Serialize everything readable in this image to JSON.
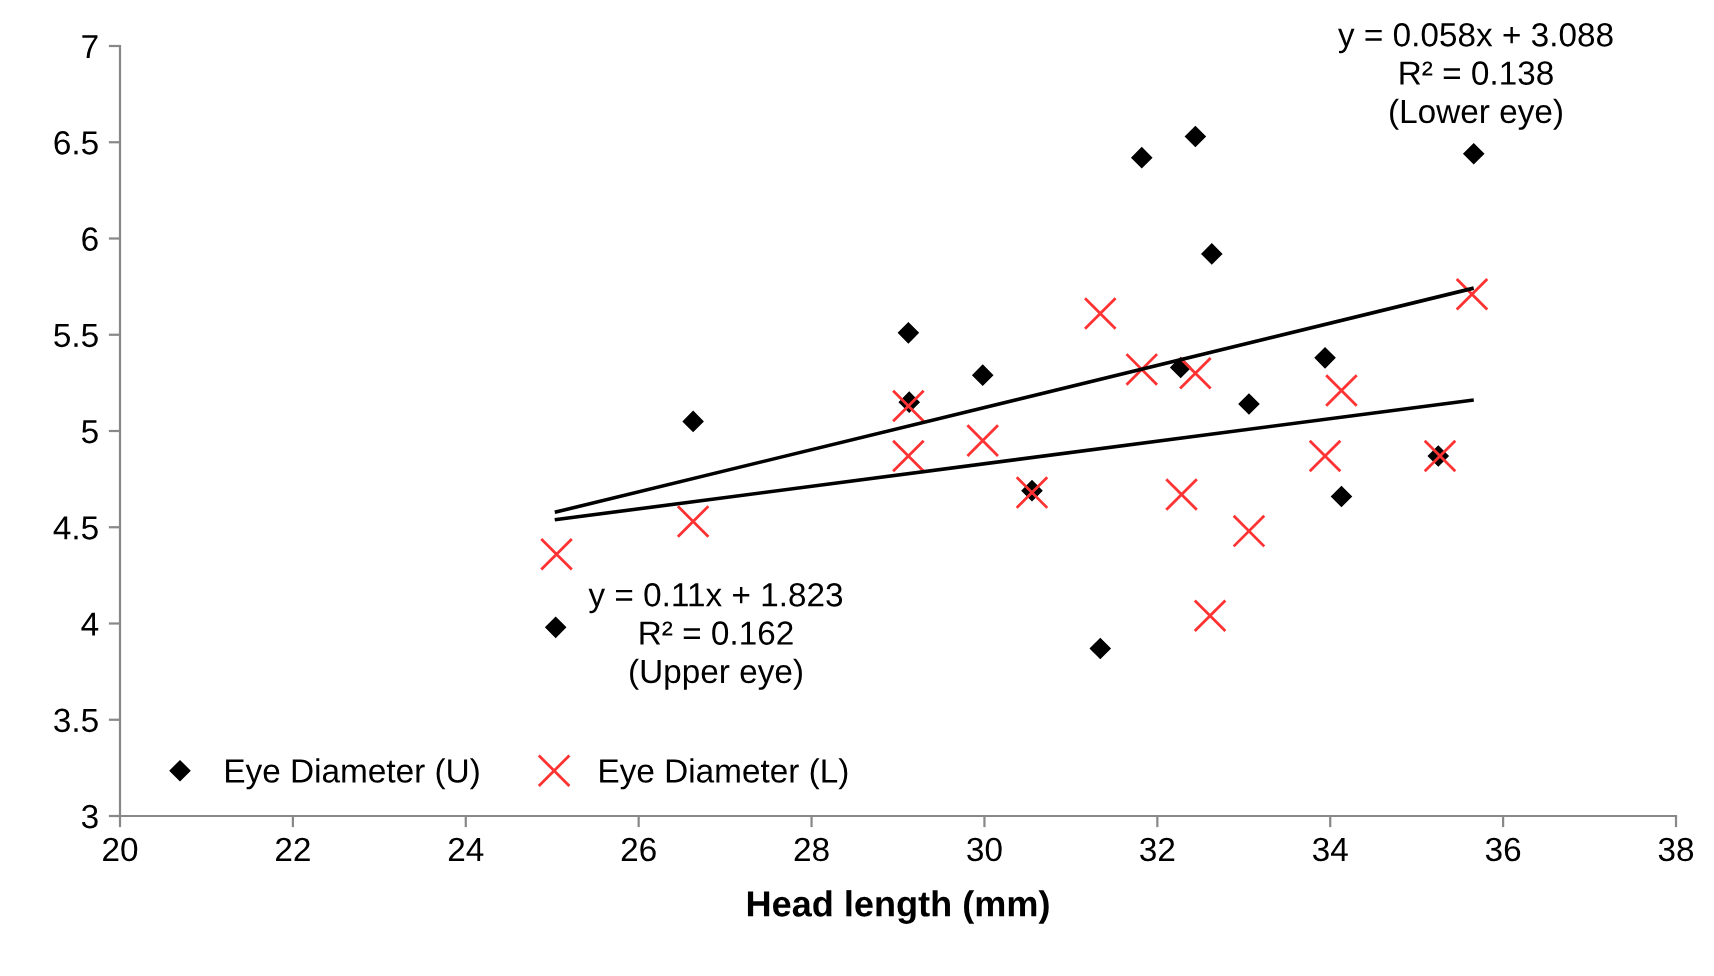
{
  "chart_data": {
    "type": "scatter",
    "xlabel": "Head length (mm)",
    "xlim": [
      20,
      38
    ],
    "xticks": [
      20,
      22,
      24,
      26,
      28,
      30,
      32,
      34,
      36,
      38
    ],
    "ylim": [
      3,
      7
    ],
    "yticks": [
      3,
      {
        "value": 3.5,
        "label": "3.5"
      },
      4,
      {
        "value": 4.5,
        "label": "4.5"
      },
      5,
      {
        "value": 5.5,
        "label": "5.5"
      },
      6,
      {
        "value": 6.5,
        "label": "6.5"
      },
      7
    ],
    "grid": false,
    "legend": "bottom left",
    "series": [
      {
        "name": "Eye Diameter (U)",
        "marker": "diamond",
        "color": "#000000",
        "x": [
          25.04,
          26.63,
          29.12,
          29.13,
          29.98,
          30.55,
          31.34,
          31.82,
          32.44,
          32.63,
          32.27,
          33.06,
          33.94,
          34.13,
          35.25,
          35.66
        ],
        "values": [
          3.98,
          5.05,
          5.51,
          5.15,
          5.29,
          4.69,
          3.87,
          6.42,
          6.53,
          5.92,
          5.33,
          5.14,
          5.38,
          4.66,
          4.87,
          6.44
        ]
      },
      {
        "name": "Eye Diameter (L)",
        "marker": "cross",
        "color": "#ff3333",
        "x": [
          25.05,
          26.63,
          29.12,
          29.12,
          29.98,
          30.55,
          31.34,
          31.82,
          32.44,
          32.28,
          33.06,
          32.61,
          33.94,
          34.13,
          35.27,
          35.64
        ],
        "values": [
          4.36,
          4.53,
          5.13,
          4.87,
          4.95,
          4.68,
          5.61,
          5.32,
          5.3,
          4.67,
          4.48,
          4.04,
          4.87,
          5.21,
          4.87,
          5.71
        ]
      },
      {
        "type": "line",
        "color": "#000000",
        "x": [
          25.05,
          35.64
        ],
        "values": [
          4.58,
          5.74
        ]
      },
      {
        "type": "line",
        "color": "#000000",
        "x": [
          25.05,
          35.64
        ],
        "values": [
          4.54,
          5.16
        ]
      }
    ],
    "annotations": [
      "y = 0.11x + 1.823\nR² = 0.162\n(Upper eye)",
      "y = 0.058x + 3.088\nR² = 0.138\n(Lower eye)"
    ]
  }
}
